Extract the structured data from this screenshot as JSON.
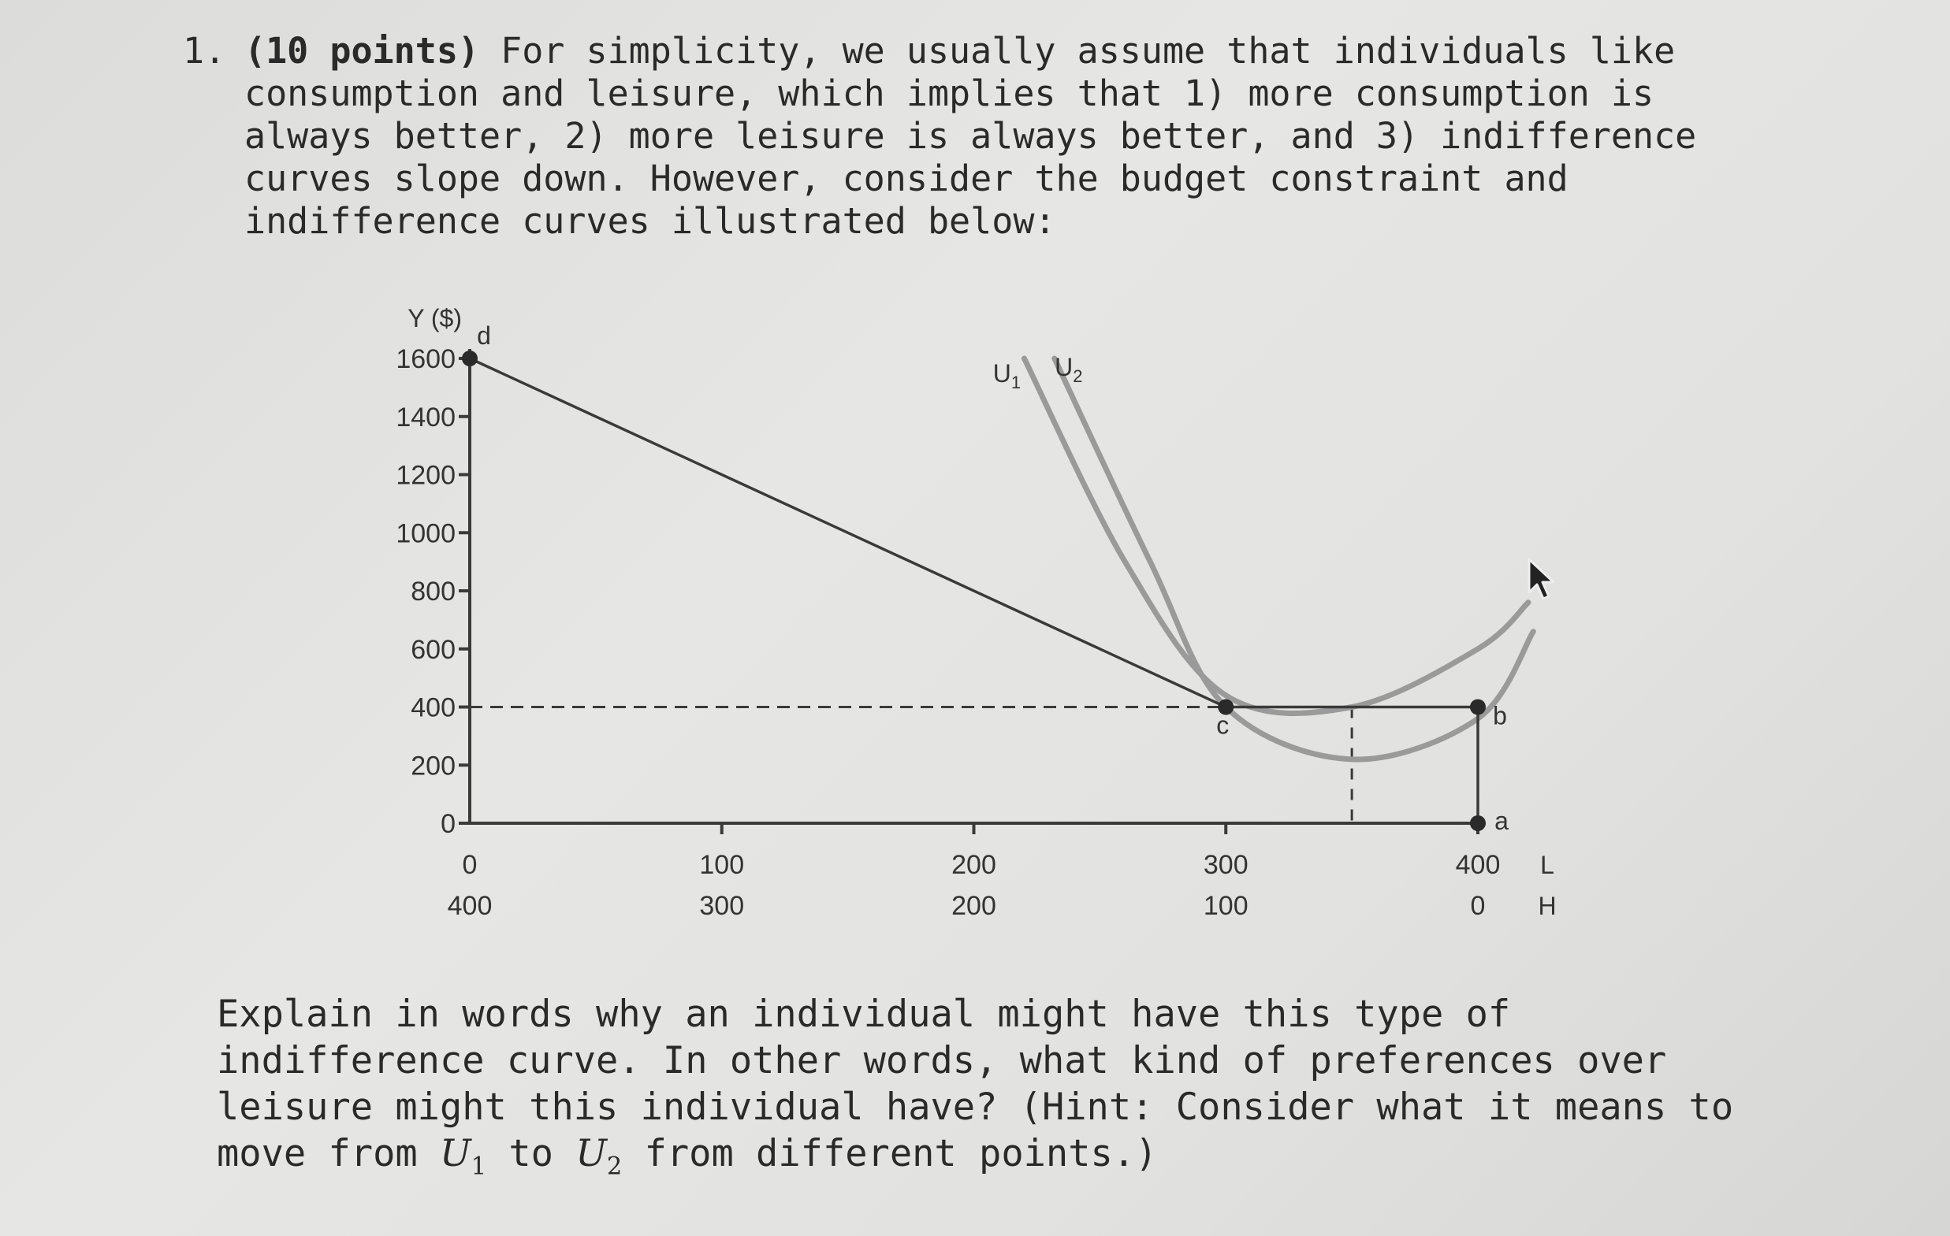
{
  "question": {
    "number": "1.",
    "points": "(10 points)",
    "lines": [
      " For simplicity, we usually assume that individuals like",
      "consumption and leisure, which implies that 1) more consumption is",
      "always better, 2) more leisure is always better, and 3) indifference",
      "curves slope down. However, consider the budget constraint and",
      "indifference curves illustrated below:"
    ]
  },
  "explain": {
    "lines": [
      "Explain in words why an individual might have this type of",
      "indifference curve. In other words, what kind of preferences over",
      "leisure might this individual have? (Hint: Consider what it means to"
    ],
    "last_prefix": "move from ",
    "u1_base": "U",
    "u1_sub": "1",
    "middle": " to ",
    "u2_base": "U",
    "u2_sub": "2",
    "last_suffix": " from different points.)"
  },
  "chart_data": {
    "type": "line",
    "ylabel": "Y ($)",
    "xlabel": "L",
    "x2label": "H",
    "xlim": [
      0,
      400
    ],
    "ylim": [
      0,
      1600
    ],
    "yticks": [
      "1600",
      "1400",
      "1200",
      "1000",
      "800",
      "600",
      "400",
      "200",
      "0"
    ],
    "ytick_values": [
      1600,
      1400,
      1200,
      1000,
      800,
      600,
      400,
      200,
      0
    ],
    "xticks_L": [
      "0",
      "100",
      "200",
      "300",
      "400"
    ],
    "xticks_H": [
      "400",
      "300",
      "200",
      "100",
      "0"
    ],
    "xtick_values": [
      0,
      100,
      200,
      300,
      400
    ],
    "budget_constraint": [
      [
        0,
        1600
      ],
      [
        300,
        400
      ],
      [
        400,
        400
      ],
      [
        400,
        0
      ]
    ],
    "reference_line_y": 400,
    "reference_line_x": 350,
    "points": [
      {
        "label": "d",
        "x": 0,
        "y": 1600
      },
      {
        "label": "c",
        "x": 300,
        "y": 400
      },
      {
        "label": "b",
        "x": 400,
        "y": 400
      },
      {
        "label": "a",
        "x": 400,
        "y": 0
      }
    ],
    "series": [
      {
        "name": "U1",
        "label_base": "U",
        "label_sub": "1",
        "x": [
          220,
          260,
          300,
          350,
          400,
          420
        ],
        "y": [
          1600,
          900,
          440,
          400,
          600,
          760
        ]
      },
      {
        "name": "U2",
        "label_base": "U",
        "label_sub": "2",
        "x": [
          232,
          270,
          300,
          350,
          400,
          422
        ],
        "y": [
          1600,
          900,
          400,
          220,
          360,
          660
        ]
      }
    ],
    "colors": {
      "axis": "#3a3a3a",
      "budget": "#3a3a3a",
      "curve": "#9a9a9a"
    }
  }
}
